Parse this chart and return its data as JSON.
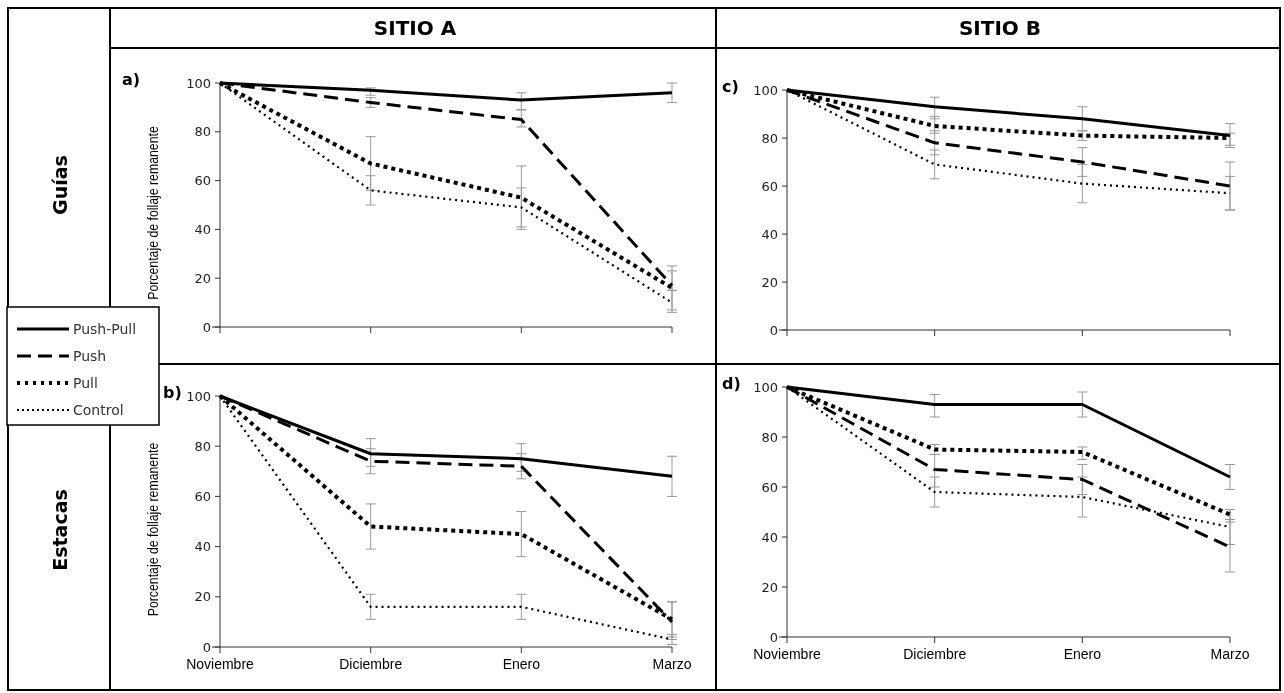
{
  "chart_data": [
    {
      "type": "line",
      "title": "a)",
      "annotations": [
        "SITIO A",
        "Guías"
      ],
      "ylabel": "Porcentaje de follaje remanente",
      "categories": [
        null,
        null,
        null,
        null
      ],
      "ylim": [
        0,
        100
      ],
      "yticks": [
        0,
        20,
        40,
        60,
        80,
        100
      ],
      "tick_labels": "y",
      "grid": false,
      "legend": "left",
      "marker": "none",
      "series": [
        {
          "name": "Push-Pull",
          "color": "#000000",
          "line_style": "solid",
          "values": [
            100,
            97,
            93,
            96
          ],
          "errors": [
            null,
            [
              95,
              98
            ],
            [
              89,
              96
            ],
            [
              92,
              100
            ]
          ]
        },
        {
          "name": "Push",
          "color": "#000000",
          "line_style": "dashed",
          "values": [
            100,
            92,
            85,
            17
          ],
          "errors": [
            null,
            [
              90,
              94
            ],
            [
              82,
              89
            ],
            [
              15,
              23
            ]
          ]
        },
        {
          "name": "Pull",
          "color": "#000000",
          "line_style": "dotted",
          "values": [
            100,
            67,
            53,
            16
          ],
          "errors": [
            null,
            [
              56,
              78
            ],
            [
              40,
              66
            ],
            [
              7,
              25
            ]
          ]
        },
        {
          "name": "Control",
          "color": "#000000",
          "line_style": "dotted",
          "values": [
            100,
            56,
            49,
            10
          ],
          "errors": [
            null,
            [
              50,
              62
            ],
            [
              41,
              57
            ],
            [
              6,
              15
            ]
          ]
        }
      ]
    },
    {
      "type": "line",
      "title": "c)",
      "annotations": [
        "SITIO B"
      ],
      "categories": [
        null,
        null,
        null,
        null
      ],
      "ylim": [
        0,
        100
      ],
      "yticks": [
        0,
        20,
        40,
        60,
        80,
        100
      ],
      "tick_labels": "y",
      "grid": false,
      "marker": "none",
      "series": [
        {
          "color": "#000000",
          "line_style": "solid",
          "values": [
            100,
            93,
            88,
            81
          ],
          "errors": [
            null,
            [
              88,
              97
            ],
            [
              83,
              93
            ],
            [
              76,
              86
            ]
          ]
        },
        {
          "color": "#000000",
          "line_style": "dashed",
          "values": [
            100,
            78,
            70,
            60
          ],
          "errors": [
            null,
            [
              73,
              83
            ],
            [
              64,
              76
            ],
            [
              50,
              70
            ]
          ]
        },
        {
          "color": "#000000",
          "line_style": "dotted",
          "values": [
            100,
            85,
            81,
            80
          ],
          "errors": [
            null,
            [
              82,
              89
            ],
            [
              79,
              83
            ],
            [
              77,
              82
            ]
          ]
        },
        {
          "color": "#000000",
          "line_style": "dotted",
          "values": [
            100,
            69,
            61,
            57
          ],
          "errors": [
            null,
            [
              63,
              75
            ],
            [
              53,
              69
            ],
            [
              50,
              64
            ]
          ]
        }
      ]
    },
    {
      "type": "line",
      "title": "b)",
      "annotations": [
        "Estacas"
      ],
      "ylabel": "Porcentaje de follaje remanente",
      "categories": [
        "Noviembre",
        "Diciembre",
        "Enero",
        "Marzo"
      ],
      "ylim": [
        0,
        100
      ],
      "yticks": [
        0,
        20,
        40,
        60,
        80,
        100
      ],
      "grid": false,
      "marker": "none",
      "series": [
        {
          "color": "#000000",
          "line_style": "solid",
          "values": [
            100,
            77,
            75,
            68
          ],
          "errors": [
            null,
            [
              72,
              83
            ],
            [
              70,
              81
            ],
            [
              60,
              76
            ]
          ]
        },
        {
          "color": "#000000",
          "line_style": "dashed",
          "values": [
            100,
            74,
            72,
            10
          ],
          "errors": [
            null,
            [
              69,
              79
            ],
            [
              67,
              77
            ],
            [
              3,
              18
            ]
          ]
        },
        {
          "color": "#000000",
          "line_style": "dotted",
          "values": [
            100,
            48,
            45,
            11
          ],
          "errors": [
            null,
            [
              39,
              57
            ],
            [
              36,
              54
            ],
            [
              4,
              18
            ]
          ]
        },
        {
          "color": "#000000",
          "line_style": "dotted",
          "values": [
            100,
            16,
            16,
            3
          ],
          "errors": [
            null,
            [
              11,
              21
            ],
            [
              11,
              21
            ],
            [
              1,
              5
            ]
          ]
        }
      ]
    },
    {
      "type": "line",
      "title": "d)",
      "categories": [
        "Noviembre",
        "Diciembre",
        "Enero",
        "Marzo"
      ],
      "ylim": [
        0,
        100
      ],
      "yticks": [
        0,
        20,
        40,
        60,
        80,
        100
      ],
      "grid": false,
      "marker": "none",
      "series": [
        {
          "color": "#000000",
          "line_style": "solid",
          "values": [
            100,
            93,
            93,
            64
          ],
          "errors": [
            null,
            [
              88,
              97
            ],
            [
              88,
              98
            ],
            [
              59,
              69
            ]
          ]
        },
        {
          "color": "#000000",
          "line_style": "dashed",
          "values": [
            100,
            67,
            63,
            36
          ],
          "errors": [
            null,
            [
              60,
              73
            ],
            [
              57,
              69
            ],
            [
              26,
              47
            ]
          ]
        },
        {
          "color": "#000000",
          "line_style": "dotted",
          "values": [
            100,
            75,
            74,
            49
          ],
          "errors": [
            null,
            [
              73,
              77
            ],
            [
              71,
              76
            ],
            [
              46,
              51
            ]
          ]
        },
        {
          "color": "#000000",
          "line_style": "dotted",
          "values": [
            100,
            58,
            56,
            44
          ],
          "errors": [
            null,
            [
              52,
              64
            ],
            [
              48,
              64
            ],
            [
              37,
              51
            ]
          ]
        }
      ]
    }
  ]
}
